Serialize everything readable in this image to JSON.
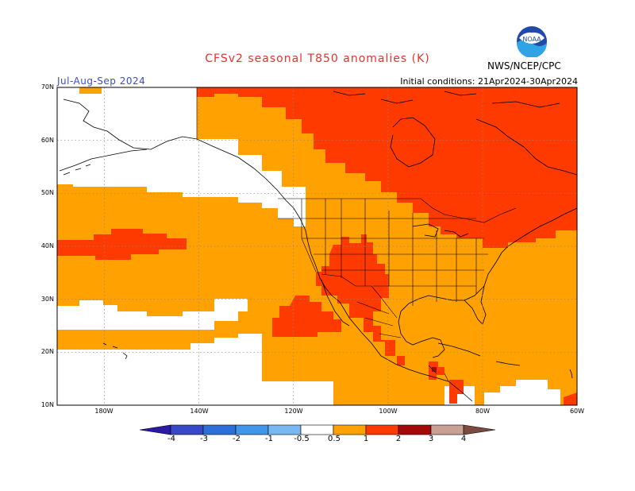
{
  "header": {
    "title": "CFSv2 seasonal T850 anomalies (K)",
    "period": "Jul-Aug-Sep 2024",
    "initial_conditions": "Initial conditions: 21Apr2024-30Apr2024",
    "agency": "NWS/NCEP/CPC",
    "logo_text": "NOAA"
  },
  "axes": {
    "lat_labels": [
      "70N",
      "60N",
      "50N",
      "40N",
      "30N",
      "20N",
      "10N"
    ],
    "lon_labels": [
      "180W",
      "140W",
      "120W",
      "100W",
      "80W",
      "60W"
    ]
  },
  "colorbar": {
    "labels": [
      "-4",
      "-3",
      "-2",
      "-1",
      "-0.5",
      "0.5",
      "1",
      "2",
      "3",
      "4"
    ],
    "colors": [
      "#2b1aa7",
      "#3848c9",
      "#2d6fd8",
      "#3f96ea",
      "#7ab8f2",
      "#ffffff",
      "#ffa100",
      "#ff3a00",
      "#a50808",
      "#c9a096",
      "#7b4a40"
    ]
  },
  "legend_colors": {
    "orange": "#ffa100",
    "red": "#ff3a00",
    "dark_red": "#a50808",
    "white": "#ffffff"
  }
}
